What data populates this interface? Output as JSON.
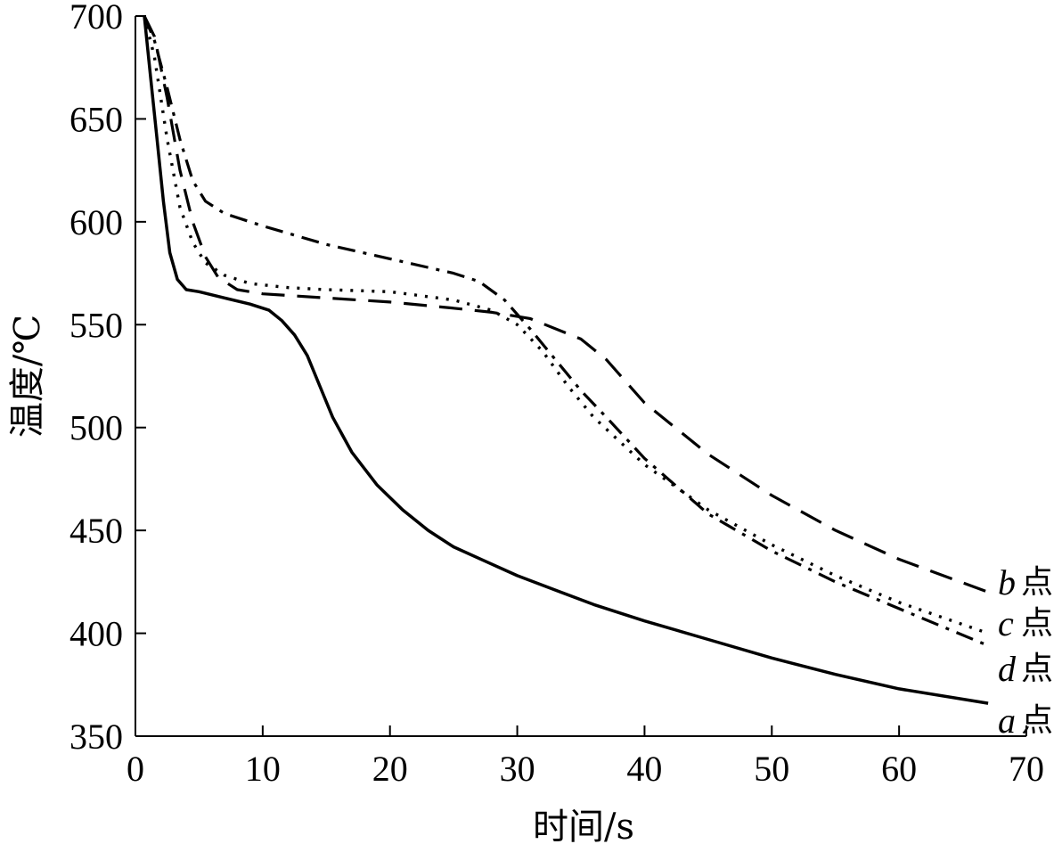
{
  "chart_data": {
    "type": "line",
    "xlabel": "时间/s",
    "ylabel": "温度/℃",
    "xlim": [
      0,
      70
    ],
    "ylim": [
      350,
      700
    ],
    "xticks": [
      0,
      10,
      20,
      30,
      40,
      50,
      60,
      70
    ],
    "yticks": [
      350,
      400,
      450,
      500,
      550,
      600,
      650,
      700
    ],
    "grid": false,
    "legend": "line-end labels at right",
    "series": [
      {
        "name": "a点",
        "letter": "a",
        "suffix": "点",
        "style": "solid",
        "x": [
          0.7,
          1.2,
          1.7,
          2.2,
          2.7,
          3.3,
          4,
          5,
          7,
          9,
          10.5,
          11.5,
          12.5,
          13.5,
          14.5,
          15.5,
          17,
          19,
          21,
          23,
          25,
          27.5,
          30,
          33,
          36,
          40,
          45,
          50,
          55,
          60,
          67
        ],
        "y": [
          700,
          670,
          640,
          610,
          585,
          572,
          567,
          566,
          563,
          560,
          557,
          552,
          545,
          535,
          520,
          505,
          488,
          472,
          460,
          450,
          442,
          435,
          428,
          421,
          414,
          406,
          397,
          388,
          380,
          373,
          366
        ]
      },
      {
        "name": "b点",
        "letter": "b",
        "suffix": "点",
        "style": "dashed",
        "x": [
          0.7,
          1.5,
          2.5,
          3.5,
          4.5,
          5.5,
          6.5,
          8,
          10,
          15,
          20,
          25,
          28,
          31,
          35,
          37,
          40,
          45,
          50,
          55,
          60,
          67
        ],
        "y": [
          700,
          690,
          660,
          625,
          600,
          583,
          573,
          567,
          565,
          563,
          561,
          558,
          556,
          553,
          543,
          533,
          512,
          487,
          467,
          450,
          436,
          420
        ]
      },
      {
        "name": "c点",
        "letter": "c",
        "suffix": "点",
        "style": "dotted",
        "x": [
          0.7,
          1.5,
          2.5,
          3.5,
          4.5,
          5.5,
          7,
          9,
          12,
          15,
          20,
          25,
          28,
          30,
          32,
          34,
          36,
          40,
          45,
          50,
          55,
          60,
          67
        ],
        "y": [
          700,
          680,
          640,
          607,
          590,
          580,
          574,
          570,
          568,
          567,
          566,
          562,
          557,
          550,
          537,
          520,
          505,
          482,
          460,
          443,
          428,
          415,
          400
        ]
      },
      {
        "name": "d点",
        "letter": "d",
        "suffix": "点",
        "style": "dashdot",
        "x": [
          0.7,
          1.5,
          2.5,
          3.5,
          4.5,
          5.5,
          7,
          10,
          15,
          20,
          25,
          27,
          29,
          31,
          33,
          35,
          37,
          40,
          45,
          50,
          55,
          60,
          67
        ],
        "y": [
          700,
          688,
          665,
          640,
          620,
          610,
          604,
          598,
          589,
          582,
          575,
          571,
          562,
          548,
          533,
          518,
          505,
          485,
          458,
          440,
          425,
          412,
          394
        ]
      }
    ]
  }
}
